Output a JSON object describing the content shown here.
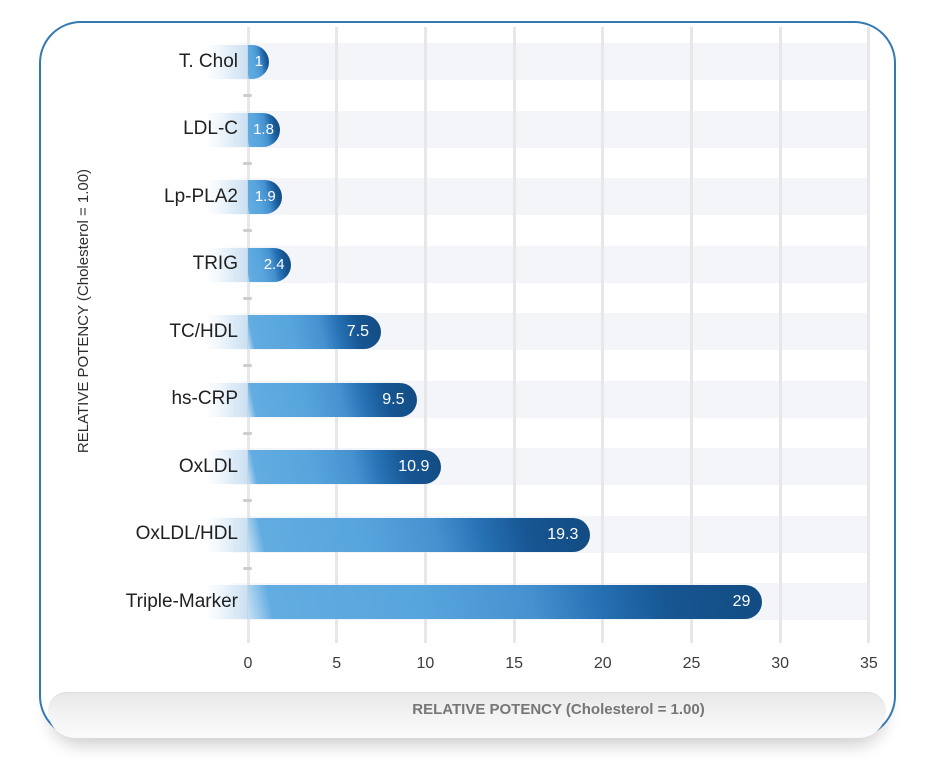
{
  "chart_data": {
    "type": "bar",
    "orientation": "horizontal",
    "title": "",
    "categories": [
      "T. Chol",
      "LDL-C",
      "Lp-PLA2",
      "TRIG",
      "TC/HDL",
      "hs-CRP",
      "OxLDL",
      "OxLDL/HDL",
      "Triple-Marker"
    ],
    "values": [
      1,
      1.8,
      1.9,
      2.4,
      7.5,
      9.5,
      10.9,
      19.3,
      29
    ],
    "value_labels": [
      "1",
      "1.8",
      "1.9",
      "2.4",
      "7.5",
      "9.5",
      "10.9",
      "19.3",
      "29"
    ],
    "xlabel": "RELATIVE POTENCY (Cholesterol = 1.00)",
    "ylabel": "RELATIVE POTENCY (Cholesterol = 1.00)",
    "x_ticks": [
      0,
      5,
      10,
      15,
      20,
      25,
      30,
      35
    ],
    "xlim": [
      0,
      35
    ],
    "grid": "vertical-gridlines-on",
    "legend": "none",
    "colors": {
      "bar_gradient_light": "#5aa7de",
      "bar_gradient_dark": "#124b81",
      "row_band": "#f3f5f9",
      "gridline": "#e7e7ea",
      "frame_border": "#3579b1",
      "value_label_text": "#ffffff",
      "axis_text": "#3d3d3d"
    }
  }
}
